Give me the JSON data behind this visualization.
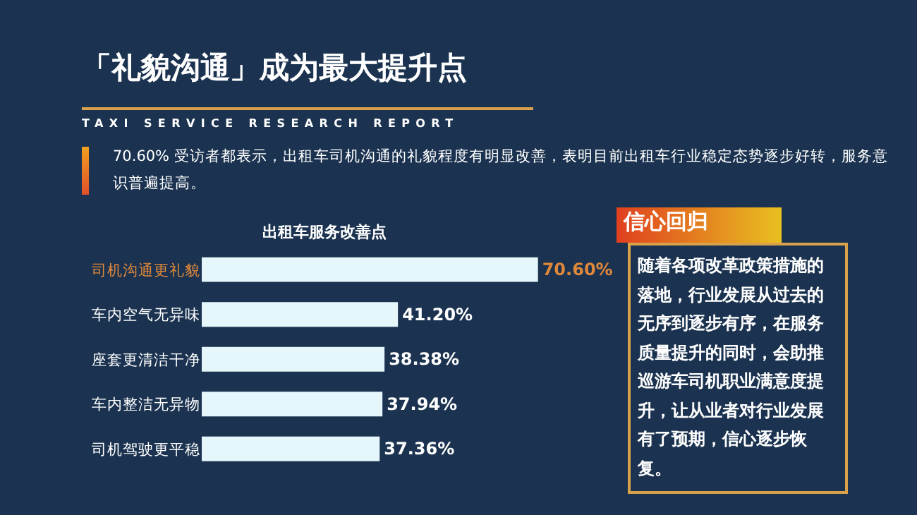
{
  "chart_data": {
    "type": "bar",
    "orientation": "horizontal",
    "title": "「礼貌沟通」成为最大提升点",
    "subtitle": "TAXI SERVICE RESEARCH REPORT",
    "categories": [
      "司机沟通更礼貌",
      "车内空气无异味",
      "座套更清洁干净",
      "车内整洁无异物",
      "司机驾驶更平稳"
    ],
    "values": [
      70.6,
      41.2,
      38.38,
      37.94,
      37.36
    ],
    "value_labels": [
      "70.60%",
      "41.20%",
      "38.38%",
      "37.94%",
      "37.36%"
    ],
    "color": "#e6f7fb",
    "annotations": [
      "70.60% 受访者都表示，出租车司机沟通的礼貌程度有明显改善，表明目前出租车行业稳定态势逐步好转，服务意识普遍提高。",
      "出租车服务改善点",
      "信心回归",
      "随着各项改革政策措施的落地，行业发展从过去的无序到逐步有序，在服务质量提升的同时，会助推巡游车司机职业满意度提升，让从业者对行业发展有了预期，信心逐步恢复。"
    ],
    "grid": false,
    "legend": false
  }
}
